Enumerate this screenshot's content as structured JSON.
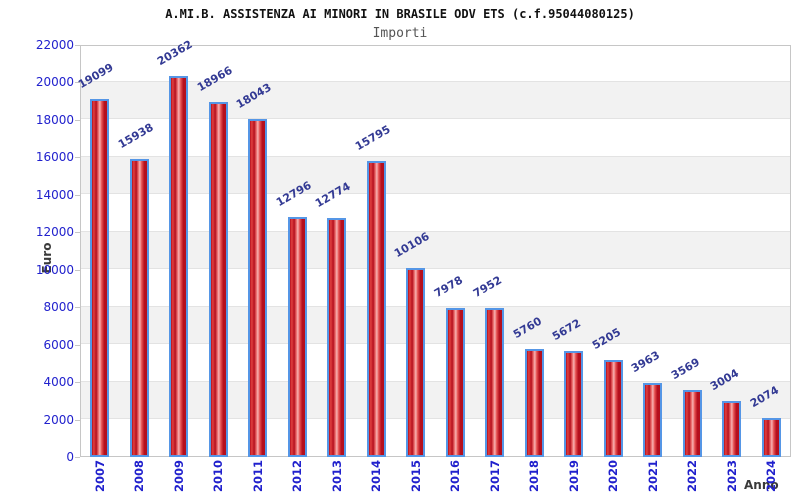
{
  "chart_data": {
    "type": "bar",
    "title": "A.MI.B. ASSISTENZA AI MINORI IN BRASILE ODV ETS (c.f.95044080125)",
    "subtitle": "Importi",
    "xlabel": "Anno",
    "ylabel": "Euro",
    "categories": [
      "2007",
      "2008",
      "2009",
      "2010",
      "2011",
      "2012",
      "2013",
      "2014",
      "2015",
      "2016",
      "2017",
      "2018",
      "2019",
      "2020",
      "2021",
      "2022",
      "2023",
      "2024"
    ],
    "values": [
      19099,
      15938,
      20362,
      18966,
      18043,
      12796,
      12774,
      15795,
      10106,
      7978,
      7952,
      5760,
      5672,
      5205,
      3963,
      3569,
      3004,
      2074
    ],
    "ylim": [
      0,
      22000
    ],
    "ytick_step": 2000,
    "grid": true,
    "legend_position": "none",
    "colors": {
      "title": "#111111",
      "subtitle": "#555555",
      "axis_tick_text": "#2121cd",
      "value_label": "#333a94",
      "axis_title": "#3a3a3a",
      "grid_line": "#e3e3e3",
      "plot_border": "#c6c6c6",
      "band_alt": "#f2f2f2",
      "band_main": "#ffffff",
      "bar_border": "#5596e6",
      "bar_dark": "#b50f1d",
      "bar_mid": "#e04040",
      "bar_light": "#f6b3b3"
    }
  }
}
